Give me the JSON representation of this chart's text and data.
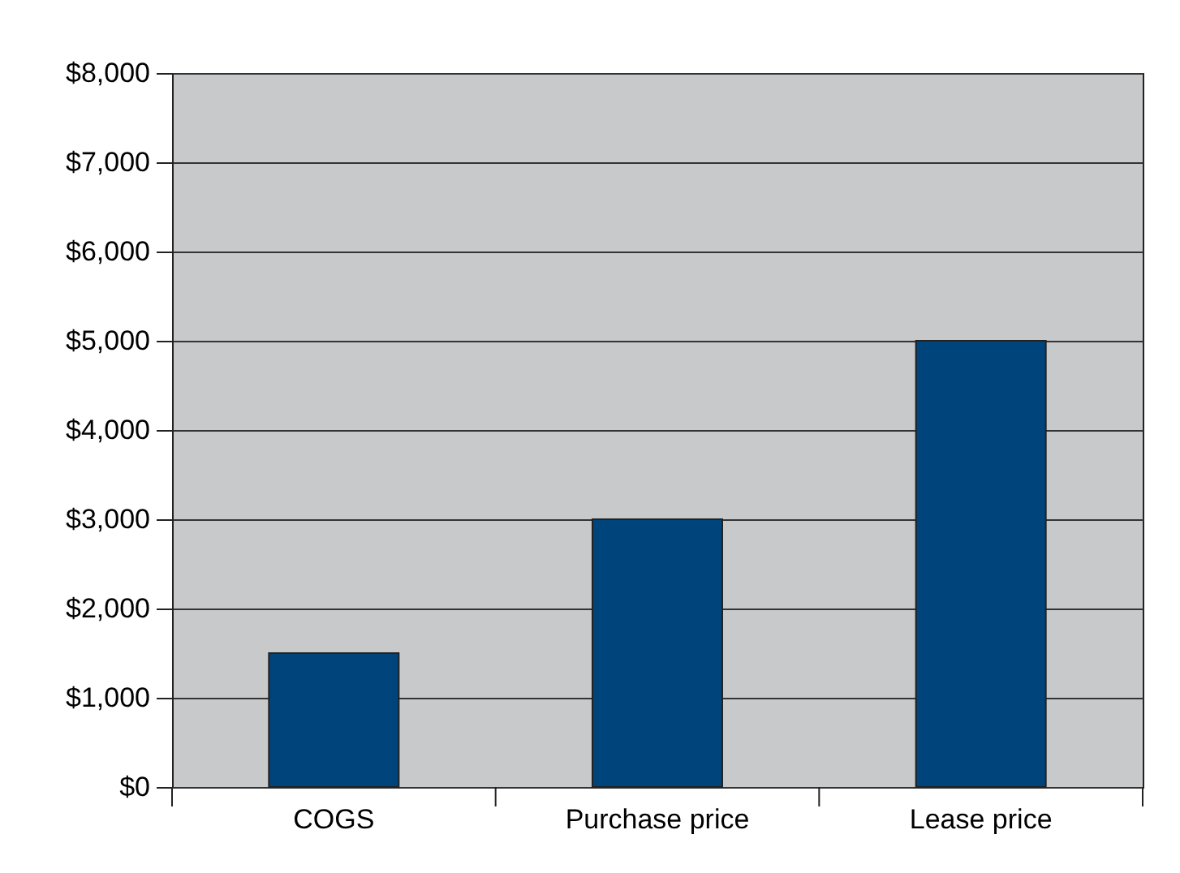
{
  "chart_data": {
    "type": "bar",
    "categories": [
      "COGS",
      "Purchase price",
      "Lease price"
    ],
    "values": [
      1500,
      3000,
      5000
    ],
    "color": "#00447c",
    "ylim": [
      0,
      8000
    ],
    "yticks": [
      {
        "value": 0,
        "label": "$0"
      },
      {
        "value": 1000,
        "label": "$1,000"
      },
      {
        "value": 2000,
        "label": "$2,000"
      },
      {
        "value": 3000,
        "label": "$3,000"
      },
      {
        "value": 4000,
        "label": "$4,000"
      },
      {
        "value": 5000,
        "label": "$5,000"
      },
      {
        "value": 6000,
        "label": "$6,000"
      },
      {
        "value": 7000,
        "label": "$7,000"
      },
      {
        "value": 8000,
        "label": "$8,000"
      }
    ],
    "grid": "y"
  }
}
